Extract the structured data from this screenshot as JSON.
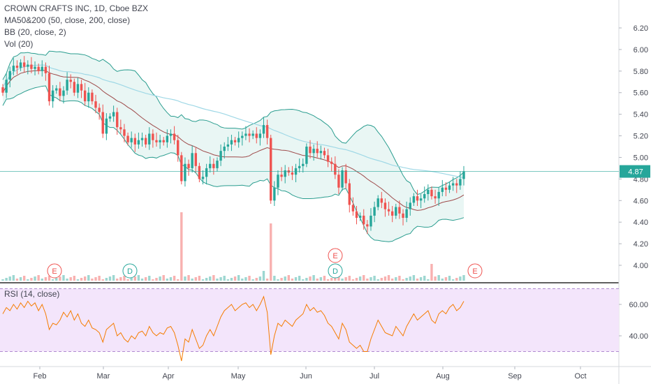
{
  "legend": {
    "title": "CROWN CRAFTS INC, 1D, Cboe BZX",
    "ma": "MA50&200 (50, close, 200, close)",
    "bb": "BB (20, close, 2)",
    "vol": "Vol (20)"
  },
  "rsi_label": "RSI (14, close)",
  "last_price_label": "4.87",
  "colors": {
    "up": "#26a69a",
    "down": "#ef5350",
    "bb_band": "#2a9d8f",
    "bb_fill": "#e0f2ef",
    "ma_short": "#8b1f1f",
    "ma_long": "#9fd8e6",
    "rsi_line": "#f57c00",
    "rsi_band": "#f3e5fb",
    "event_e": "#ef5350",
    "event_d": "#26a69a"
  },
  "chart_data": [
    {
      "type": "candlestick",
      "title": "CROWN CRAFTS INC, 1D, Cboe BZX",
      "y_axis": {
        "ticks": [
          "6.20",
          "6.00",
          "5.80",
          "5.60",
          "5.40",
          "5.20",
          "5.00",
          "4.80",
          "4.60",
          "4.40",
          "4.20",
          "4.00"
        ],
        "range": [
          3.9,
          6.25
        ]
      },
      "x_axis": {
        "ticks": [
          "Feb",
          "Mar",
          "Apr",
          "May",
          "Jun",
          "Jul",
          "Aug",
          "Sep",
          "Oct"
        ]
      },
      "last_price": 4.87,
      "closes": [
        5.6,
        5.72,
        5.8,
        5.85,
        5.83,
        5.88,
        5.84,
        5.86,
        5.82,
        5.84,
        5.8,
        5.84,
        5.78,
        5.52,
        5.62,
        5.64,
        5.57,
        5.62,
        5.72,
        5.7,
        5.6,
        5.68,
        5.62,
        5.52,
        5.6,
        5.52,
        5.46,
        5.42,
        5.22,
        5.36,
        5.38,
        5.42,
        5.28,
        5.26,
        5.2,
        5.14,
        5.18,
        5.12,
        5.16,
        5.18,
        5.12,
        5.22,
        5.16,
        5.14,
        5.16,
        5.14,
        5.2,
        5.22,
        5.16,
        5.02,
        4.78,
        4.94,
        4.9,
        5.04,
        4.92,
        4.8,
        4.82,
        4.9,
        4.94,
        4.9,
        4.97,
        5.06,
        5.1,
        5.12,
        5.16,
        5.14,
        5.18,
        5.2,
        5.22,
        5.2,
        5.22,
        5.18,
        5.22,
        5.3,
        5.18,
        4.6,
        4.72,
        4.84,
        4.82,
        4.88,
        4.86,
        4.84,
        4.9,
        4.92,
        4.94,
        5.1,
        5.04,
        5.08,
        5.04,
        5.06,
        5.02,
        4.96,
        4.94,
        4.84,
        4.72,
        4.88,
        4.76,
        4.56,
        4.5,
        4.44,
        4.46,
        4.38,
        4.36,
        4.46,
        4.54,
        4.62,
        4.58,
        4.52,
        4.5,
        4.46,
        4.54,
        4.48,
        4.44,
        4.52,
        4.58,
        4.64,
        4.6,
        4.62,
        4.66,
        4.7,
        4.64,
        4.62,
        4.68,
        4.72,
        4.7,
        4.74,
        4.76,
        4.74,
        4.8,
        4.87
      ],
      "volume_spikes": {
        "Apr": "large",
        "May": "large",
        "Aug": "medium"
      },
      "events": [
        {
          "label": "E",
          "x": "Jan"
        },
        {
          "label": "D",
          "x": "Mar"
        },
        {
          "label": "D",
          "x": "Jun"
        },
        {
          "label": "E",
          "x": "Jun"
        },
        {
          "label": "E",
          "x": "Aug"
        }
      ]
    },
    {
      "type": "line",
      "title": "RSI (14, close)",
      "y_axis": {
        "ticks": [
          "60.00",
          "40.00"
        ],
        "range": [
          20,
          80
        ],
        "band": [
          30,
          70
        ]
      },
      "values": [
        54,
        58,
        56,
        60,
        57,
        61,
        58,
        62,
        59,
        61,
        56,
        60,
        54,
        44,
        48,
        47,
        50,
        55,
        52,
        56,
        50,
        54,
        48,
        46,
        50,
        45,
        44,
        42,
        36,
        44,
        46,
        48,
        40,
        42,
        38,
        36,
        40,
        38,
        42,
        43,
        40,
        46,
        42,
        40,
        42,
        41,
        45,
        46,
        42,
        34,
        24,
        38,
        36,
        44,
        38,
        32,
        34,
        40,
        44,
        40,
        46,
        52,
        56,
        58,
        60,
        56,
        58,
        60,
        61,
        58,
        60,
        56,
        60,
        65,
        55,
        28,
        40,
        48,
        46,
        50,
        48,
        46,
        50,
        52,
        54,
        60,
        56,
        58,
        55,
        56,
        53,
        48,
        46,
        42,
        38,
        48,
        44,
        36,
        34,
        32,
        34,
        30,
        30,
        38,
        44,
        50,
        46,
        42,
        41,
        40,
        46,
        43,
        40,
        46,
        50,
        54,
        50,
        52,
        54,
        56,
        50,
        48,
        54,
        56,
        54,
        58,
        60,
        56,
        58,
        62
      ]
    }
  ]
}
